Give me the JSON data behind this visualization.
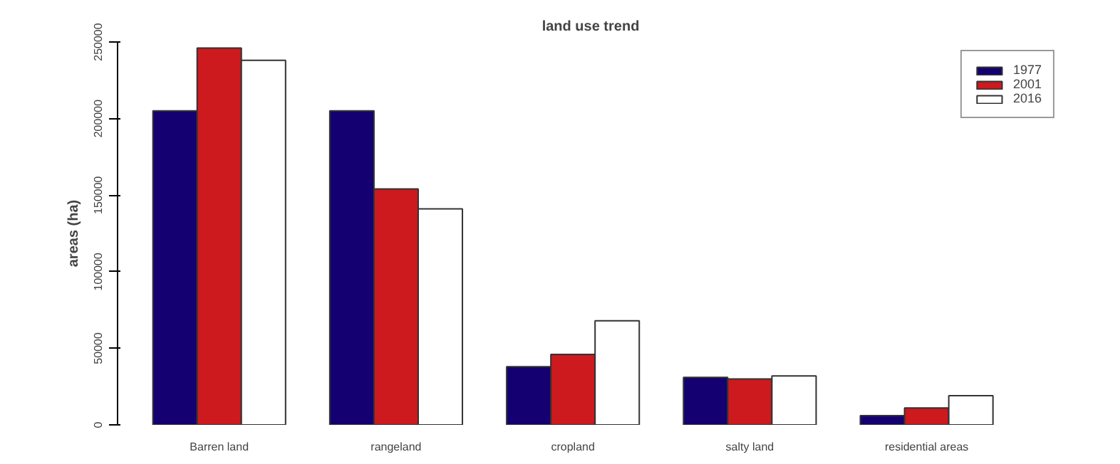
{
  "chart_data": {
    "type": "bar",
    "title": "land use trend",
    "ylabel": "areas (ha)",
    "categories": [
      "Barren land",
      "rangeland",
      "cropland",
      "salty land",
      "residential areas"
    ],
    "series": [
      {
        "name": "1977",
        "color": "#140070",
        "values": [
          205000,
          205000,
          38000,
          31000,
          6000
        ]
      },
      {
        "name": "2001",
        "color": "#cc1a1e",
        "values": [
          246000,
          154000,
          46000,
          30000,
          11000
        ]
      },
      {
        "name": "2016",
        "color": "#ffffff",
        "values": [
          238000,
          141000,
          68000,
          32000,
          19000
        ]
      }
    ],
    "ylim": [
      0,
      250000
    ],
    "yticks": [
      0,
      50000,
      100000,
      150000,
      200000,
      250000
    ],
    "grid": false,
    "legend": "top right"
  }
}
